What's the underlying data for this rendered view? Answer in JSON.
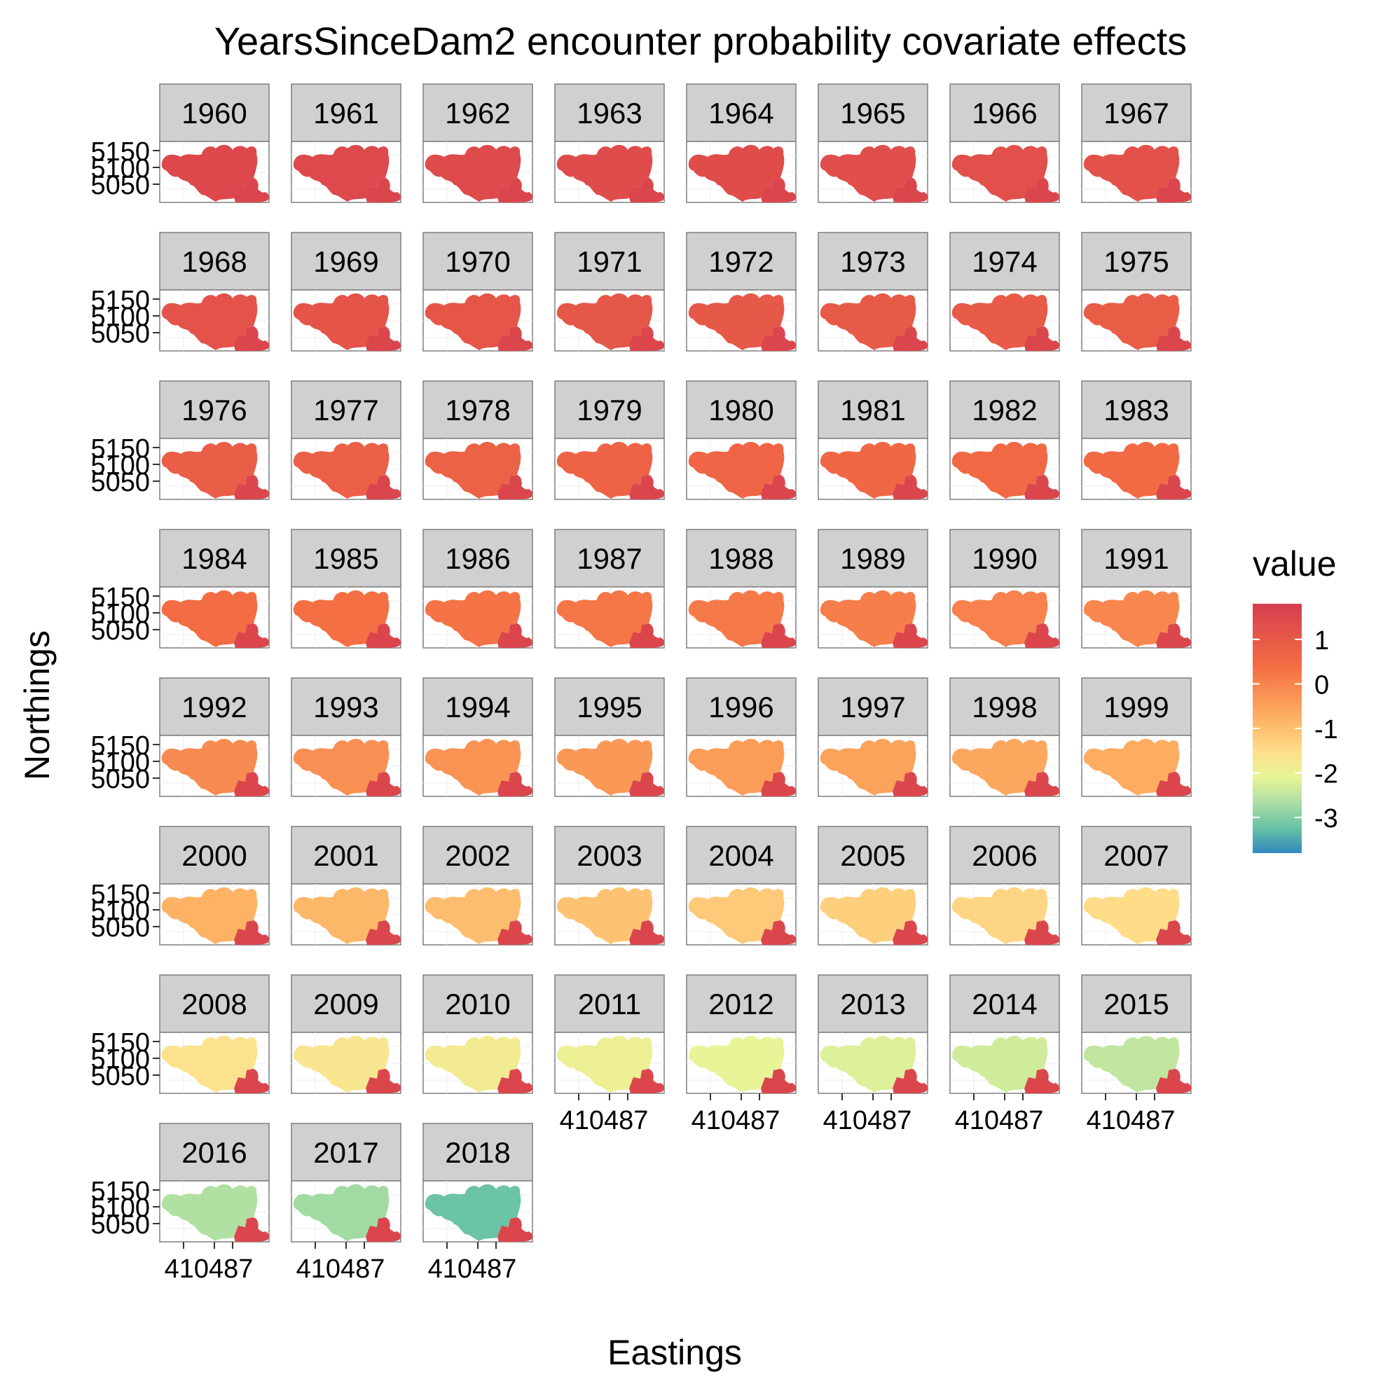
{
  "chart_data": {
    "type": "heatmap",
    "title": "YearsSinceDam2 encounter probability covariate effects",
    "xlabel": "Eastings",
    "ylabel": "Northings",
    "legend": {
      "title": "value",
      "placement": "right",
      "ticks": [
        "1",
        "0",
        "-1",
        "-2",
        "-3"
      ],
      "tick_values": [
        1,
        0,
        -1,
        -2,
        -3
      ],
      "range": [
        -3.8,
        1.8
      ]
    },
    "y_ticks": [
      "5150",
      "5100",
      "5050"
    ],
    "y_tick_values": [
      5150,
      5100,
      5050
    ],
    "x_tick_label": "410487",
    "x_tick_labels": [
      "4",
      "1",
      "0",
      "4",
      "8",
      "7",
      "1"
    ],
    "panels": [
      {
        "year": "1960",
        "value": 1.49
      },
      {
        "year": "1961",
        "value": 1.46
      },
      {
        "year": "1962",
        "value": 1.42
      },
      {
        "year": "1963",
        "value": 1.38
      },
      {
        "year": "1964",
        "value": 1.34
      },
      {
        "year": "1965",
        "value": 1.3
      },
      {
        "year": "1966",
        "value": 1.26
      },
      {
        "year": "1967",
        "value": 1.22
      },
      {
        "year": "1968",
        "value": 1.18
      },
      {
        "year": "1969",
        "value": 1.14
      },
      {
        "year": "1970",
        "value": 1.1
      },
      {
        "year": "1971",
        "value": 1.06
      },
      {
        "year": "1972",
        "value": 1.01
      },
      {
        "year": "1973",
        "value": 0.97
      },
      {
        "year": "1974",
        "value": 0.93
      },
      {
        "year": "1975",
        "value": 0.89
      },
      {
        "year": "1976",
        "value": 0.84
      },
      {
        "year": "1977",
        "value": 0.79
      },
      {
        "year": "1978",
        "value": 0.74
      },
      {
        "year": "1979",
        "value": 0.69
      },
      {
        "year": "1980",
        "value": 0.64
      },
      {
        "year": "1981",
        "value": 0.59
      },
      {
        "year": "1982",
        "value": 0.53
      },
      {
        "year": "1983",
        "value": 0.48
      },
      {
        "year": "1984",
        "value": 0.42
      },
      {
        "year": "1985",
        "value": 0.36
      },
      {
        "year": "1986",
        "value": 0.3
      },
      {
        "year": "1987",
        "value": 0.24
      },
      {
        "year": "1988",
        "value": 0.17
      },
      {
        "year": "1989",
        "value": 0.1
      },
      {
        "year": "1990",
        "value": 0.03
      },
      {
        "year": "1991",
        "value": -0.04
      },
      {
        "year": "1992",
        "value": -0.11
      },
      {
        "year": "1993",
        "value": -0.19
      },
      {
        "year": "1994",
        "value": -0.27
      },
      {
        "year": "1995",
        "value": -0.35
      },
      {
        "year": "1996",
        "value": -0.43
      },
      {
        "year": "1997",
        "value": -0.51
      },
      {
        "year": "1998",
        "value": -0.6
      },
      {
        "year": "1999",
        "value": -0.69
      },
      {
        "year": "2000",
        "value": -0.78
      },
      {
        "year": "2001",
        "value": -0.87
      },
      {
        "year": "2002",
        "value": -0.97
      },
      {
        "year": "2003",
        "value": -1.07
      },
      {
        "year": "2004",
        "value": -1.17
      },
      {
        "year": "2005",
        "value": -1.27
      },
      {
        "year": "2006",
        "value": -1.38
      },
      {
        "year": "2007",
        "value": -1.49
      },
      {
        "year": "2008",
        "value": -1.6
      },
      {
        "year": "2009",
        "value": -1.72
      },
      {
        "year": "2010",
        "value": -1.84
      },
      {
        "year": "2011",
        "value": -1.96
      },
      {
        "year": "2012",
        "value": -2.08
      },
      {
        "year": "2013",
        "value": -2.21
      },
      {
        "year": "2014",
        "value": -2.34
      },
      {
        "year": "2015",
        "value": -2.47
      },
      {
        "year": "2016",
        "value": -2.61
      },
      {
        "year": "2017",
        "value": -2.75
      },
      {
        "year": "2018",
        "value": -3.2
      }
    ],
    "southeast_region_value": 1.55,
    "grid": true
  }
}
